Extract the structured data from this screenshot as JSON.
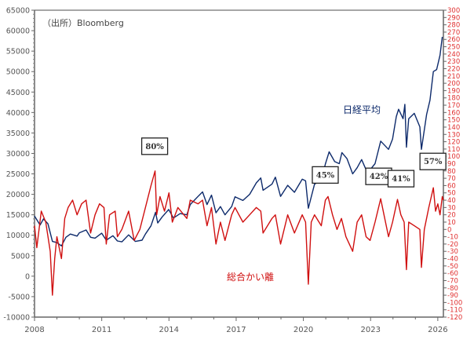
{
  "chart_data": {
    "type": "line",
    "source_note": "（出所）Bloomberg",
    "x_ticks": [
      "2008",
      "2011",
      "2014",
      "2017",
      "2020",
      "2023",
      "2026"
    ],
    "xlim": [
      2008,
      2026.25
    ],
    "left_axis": {
      "ylim": [
        -10000,
        65000
      ],
      "step": 5000
    },
    "right_axis": {
      "ylim": [
        -120,
        300
      ],
      "step": 10
    },
    "series": [
      {
        "name": "日経平均",
        "axis": "left",
        "color": "#0d2a6b",
        "points": [
          [
            2008.0,
            14700
          ],
          [
            2008.25,
            12500
          ],
          [
            2008.4,
            14000
          ],
          [
            2008.6,
            12800
          ],
          [
            2008.8,
            8500
          ],
          [
            2009.0,
            8200
          ],
          [
            2009.2,
            7400
          ],
          [
            2009.4,
            9500
          ],
          [
            2009.6,
            10300
          ],
          [
            2009.9,
            9800
          ],
          [
            2010.0,
            10600
          ],
          [
            2010.3,
            11300
          ],
          [
            2010.5,
            9500
          ],
          [
            2010.7,
            9300
          ],
          [
            2011.0,
            10500
          ],
          [
            2011.2,
            8800
          ],
          [
            2011.5,
            9900
          ],
          [
            2011.7,
            8600
          ],
          [
            2011.9,
            8400
          ],
          [
            2012.2,
            10100
          ],
          [
            2012.5,
            8500
          ],
          [
            2012.8,
            8800
          ],
          [
            2012.95,
            10300
          ],
          [
            2013.2,
            12300
          ],
          [
            2013.4,
            15600
          ],
          [
            2013.5,
            13000
          ],
          [
            2013.7,
            14500
          ],
          [
            2013.99,
            16300
          ],
          [
            2014.2,
            14200
          ],
          [
            2014.5,
            15300
          ],
          [
            2014.8,
            15000
          ],
          [
            2014.95,
            17500
          ],
          [
            2015.3,
            19500
          ],
          [
            2015.5,
            20600
          ],
          [
            2015.7,
            17500
          ],
          [
            2015.9,
            19800
          ],
          [
            2016.1,
            15500
          ],
          [
            2016.3,
            17000
          ],
          [
            2016.5,
            15000
          ],
          [
            2016.8,
            17000
          ],
          [
            2016.95,
            19400
          ],
          [
            2017.3,
            18500
          ],
          [
            2017.6,
            20000
          ],
          [
            2017.9,
            22800
          ],
          [
            2018.1,
            24000
          ],
          [
            2018.2,
            21000
          ],
          [
            2018.6,
            22500
          ],
          [
            2018.75,
            24200
          ],
          [
            2018.98,
            19500
          ],
          [
            2019.3,
            22200
          ],
          [
            2019.6,
            20500
          ],
          [
            2019.95,
            23700
          ],
          [
            2020.1,
            23300
          ],
          [
            2020.22,
            16600
          ],
          [
            2020.5,
            22500
          ],
          [
            2020.8,
            23500
          ],
          [
            2020.98,
            27400
          ],
          [
            2021.15,
            30400
          ],
          [
            2021.4,
            28000
          ],
          [
            2021.6,
            27500
          ],
          [
            2021.72,
            30200
          ],
          [
            2021.95,
            28700
          ],
          [
            2022.2,
            25000
          ],
          [
            2022.4,
            26500
          ],
          [
            2022.6,
            28500
          ],
          [
            2022.8,
            26000
          ],
          [
            2022.98,
            26000
          ],
          [
            2023.2,
            27500
          ],
          [
            2023.45,
            33000
          ],
          [
            2023.8,
            31000
          ],
          [
            2023.98,
            33500
          ],
          [
            2024.15,
            39000
          ],
          [
            2024.25,
            40800
          ],
          [
            2024.45,
            38500
          ],
          [
            2024.53,
            42000
          ],
          [
            2024.6,
            31500
          ],
          [
            2024.7,
            38500
          ],
          [
            2024.95,
            39800
          ],
          [
            2025.2,
            36500
          ],
          [
            2025.27,
            31000
          ],
          [
            2025.5,
            39500
          ],
          [
            2025.65,
            43000
          ],
          [
            2025.8,
            50000
          ],
          [
            2025.95,
            50500
          ],
          [
            2026.1,
            54000
          ],
          [
            2026.2,
            58500
          ]
        ]
      },
      {
        "name": "総合かい離",
        "axis": "right",
        "color": "#d01010",
        "points": [
          [
            2008.0,
            5
          ],
          [
            2008.1,
            -25
          ],
          [
            2008.3,
            25
          ],
          [
            2008.5,
            10
          ],
          [
            2008.7,
            -30
          ],
          [
            2008.8,
            -90
          ],
          [
            2008.9,
            -40
          ],
          [
            2009.0,
            -10
          ],
          [
            2009.2,
            -40
          ],
          [
            2009.35,
            15
          ],
          [
            2009.5,
            30
          ],
          [
            2009.7,
            40
          ],
          [
            2009.9,
            20
          ],
          [
            2010.1,
            35
          ],
          [
            2010.3,
            40
          ],
          [
            2010.5,
            -5
          ],
          [
            2010.7,
            20
          ],
          [
            2010.9,
            35
          ],
          [
            2011.1,
            30
          ],
          [
            2011.2,
            -20
          ],
          [
            2011.35,
            20
          ],
          [
            2011.6,
            25
          ],
          [
            2011.7,
            -10
          ],
          [
            2011.9,
            0
          ],
          [
            2012.2,
            25
          ],
          [
            2012.45,
            -15
          ],
          [
            2012.7,
            0
          ],
          [
            2012.95,
            30
          ],
          [
            2013.2,
            60
          ],
          [
            2013.38,
            80
          ],
          [
            2013.45,
            20
          ],
          [
            2013.6,
            45
          ],
          [
            2013.8,
            25
          ],
          [
            2014.0,
            50
          ],
          [
            2014.15,
            10
          ],
          [
            2014.4,
            30
          ],
          [
            2014.8,
            15
          ],
          [
            2014.95,
            40
          ],
          [
            2015.3,
            35
          ],
          [
            2015.5,
            40
          ],
          [
            2015.7,
            5
          ],
          [
            2015.9,
            30
          ],
          [
            2016.1,
            -20
          ],
          [
            2016.3,
            10
          ],
          [
            2016.5,
            -15
          ],
          [
            2016.8,
            20
          ],
          [
            2016.95,
            30
          ],
          [
            2017.3,
            10
          ],
          [
            2017.6,
            20
          ],
          [
            2017.9,
            30
          ],
          [
            2018.1,
            25
          ],
          [
            2018.2,
            -5
          ],
          [
            2018.6,
            15
          ],
          [
            2018.75,
            20
          ],
          [
            2018.98,
            -20
          ],
          [
            2019.3,
            20
          ],
          [
            2019.6,
            -5
          ],
          [
            2019.95,
            20
          ],
          [
            2020.1,
            10
          ],
          [
            2020.22,
            -75
          ],
          [
            2020.35,
            10
          ],
          [
            2020.5,
            20
          ],
          [
            2020.8,
            5
          ],
          [
            2020.98,
            40
          ],
          [
            2021.1,
            45
          ],
          [
            2021.3,
            20
          ],
          [
            2021.5,
            0
          ],
          [
            2021.7,
            15
          ],
          [
            2021.9,
            -10
          ],
          [
            2022.2,
            -30
          ],
          [
            2022.4,
            10
          ],
          [
            2022.6,
            20
          ],
          [
            2022.8,
            -10
          ],
          [
            2022.98,
            -15
          ],
          [
            2023.2,
            10
          ],
          [
            2023.45,
            42
          ],
          [
            2023.6,
            20
          ],
          [
            2023.8,
            -10
          ],
          [
            2023.98,
            10
          ],
          [
            2024.2,
            41
          ],
          [
            2024.35,
            20
          ],
          [
            2024.5,
            10
          ],
          [
            2024.6,
            -55
          ],
          [
            2024.7,
            10
          ],
          [
            2024.95,
            5
          ],
          [
            2025.2,
            0
          ],
          [
            2025.27,
            -52
          ],
          [
            2025.4,
            0
          ],
          [
            2025.6,
            30
          ],
          [
            2025.8,
            57
          ],
          [
            2025.9,
            25
          ],
          [
            2026.0,
            35
          ],
          [
            2026.1,
            20
          ],
          [
            2026.2,
            45
          ],
          [
            2026.25,
            40
          ]
        ]
      }
    ],
    "annotations": [
      {
        "text": "80%",
        "x": 2013.38,
        "y": 80
      },
      {
        "text": "45%",
        "x": 2021.1,
        "y": 45
      },
      {
        "text": "42%",
        "x": 2023.45,
        "y": 42
      },
      {
        "text": "41%",
        "x": 2024.2,
        "y": 41
      },
      {
        "text": "57%",
        "x": 2025.8,
        "y": 57
      }
    ],
    "series_labels": {
      "nikkei": "日経平均",
      "divergence": "総合かい離"
    }
  }
}
